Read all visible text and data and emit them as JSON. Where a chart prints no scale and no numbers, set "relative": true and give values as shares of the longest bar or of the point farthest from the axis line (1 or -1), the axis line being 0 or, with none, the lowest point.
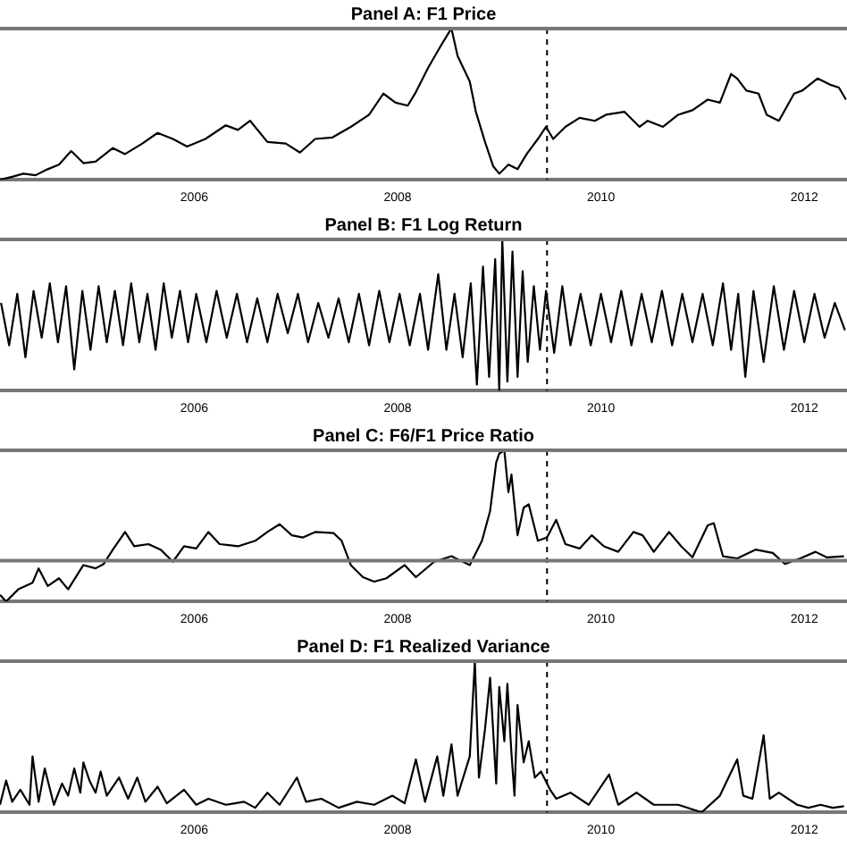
{
  "chart_data": [
    {
      "type": "line",
      "title": "Panel A: F1 Price",
      "relative": true,
      "marker": "none",
      "grid": false,
      "xlim": [
        2004.09,
        2012.42
      ],
      "xticks": [
        2006,
        2008,
        2010,
        2012
      ],
      "ref_lines": [
        {
          "axis": "x",
          "value": 2009.47,
          "line_style": "dashed"
        }
      ],
      "series": [
        {
          "color": "#000000",
          "x": [
            2004.09,
            2004.21,
            2004.32,
            2004.44,
            2004.56,
            2004.67,
            2004.79,
            2004.91,
            2005.03,
            2005.2,
            2005.32,
            2005.49,
            2005.64,
            2005.79,
            2005.93,
            2006.11,
            2006.31,
            2006.43,
            2006.55,
            2006.72,
            2006.9,
            2007.04,
            2007.19,
            2007.36,
            2007.54,
            2007.72,
            2007.86,
            2007.98,
            2008.1,
            2008.18,
            2008.3,
            2008.42,
            2008.51,
            2008.53,
            2008.59,
            2008.71,
            2008.77,
            2008.86,
            2008.94,
            2009.0,
            2009.09,
            2009.18,
            2009.27,
            2009.38,
            2009.46,
            2009.53,
            2009.65,
            2009.79,
            2009.94,
            2010.05,
            2010.23,
            2010.38,
            2010.46,
            2010.61,
            2010.76,
            2010.9,
            2011.05,
            2011.17,
            2011.28,
            2011.34,
            2011.43,
            2011.55,
            2011.63,
            2011.75,
            2011.9,
            2011.98,
            2012.13,
            2012.25,
            2012.34,
            2012.41
          ],
          "values": [
            0,
            0.02,
            0.04,
            0.03,
            0.07,
            0.1,
            0.19,
            0.11,
            0.12,
            0.21,
            0.17,
            0.24,
            0.31,
            0.27,
            0.22,
            0.27,
            0.36,
            0.33,
            0.39,
            0.25,
            0.24,
            0.18,
            0.27,
            0.28,
            0.35,
            0.43,
            0.57,
            0.51,
            0.49,
            0.58,
            0.74,
            0.88,
            0.98,
            1,
            0.82,
            0.65,
            0.45,
            0.25,
            0.09,
            0.04,
            0.1,
            0.07,
            0.17,
            0.27,
            0.35,
            0.27,
            0.35,
            0.41,
            0.39,
            0.43,
            0.45,
            0.35,
            0.39,
            0.35,
            0.43,
            0.46,
            0.53,
            0.51,
            0.7,
            0.67,
            0.59,
            0.57,
            0.43,
            0.39,
            0.57,
            0.59,
            0.67,
            0.63,
            0.61,
            0.53
          ]
        }
      ]
    },
    {
      "type": "line",
      "title": "Panel B: F1 Log Return",
      "relative": true,
      "marker": "none",
      "grid": false,
      "xlim": [
        2004.09,
        2012.42
      ],
      "xticks": [
        2006,
        2008,
        2010,
        2012
      ],
      "ref_lines": [
        {
          "axis": "x",
          "value": 2009.47,
          "line_style": "dashed"
        }
      ],
      "series": [
        {
          "color": "#000000",
          "x": [
            2004.1,
            2004.18,
            2004.26,
            2004.34,
            2004.42,
            2004.5,
            2004.58,
            2004.66,
            2004.74,
            2004.82,
            2004.9,
            2004.98,
            2005.06,
            2005.14,
            2005.22,
            2005.3,
            2005.38,
            2005.46,
            2005.54,
            2005.62,
            2005.7,
            2005.78,
            2005.86,
            2005.94,
            2006.02,
            2006.12,
            2006.22,
            2006.32,
            2006.42,
            2006.52,
            2006.62,
            2006.72,
            2006.82,
            2006.92,
            2007.02,
            2007.12,
            2007.22,
            2007.32,
            2007.42,
            2007.52,
            2007.62,
            2007.72,
            2007.82,
            2007.92,
            2008.02,
            2008.12,
            2008.22,
            2008.3,
            2008.4,
            2008.48,
            2008.56,
            2008.64,
            2008.72,
            2008.78,
            2008.84,
            2008.9,
            2008.96,
            2009.0,
            2009.03,
            2009.08,
            2009.13,
            2009.18,
            2009.23,
            2009.28,
            2009.34,
            2009.4,
            2009.46,
            2009.54,
            2009.62,
            2009.7,
            2009.8,
            2009.9,
            2010.0,
            2010.1,
            2010.2,
            2010.3,
            2010.4,
            2010.5,
            2010.6,
            2010.7,
            2010.8,
            2010.9,
            2011.0,
            2011.1,
            2011.2,
            2011.28,
            2011.35,
            2011.42,
            2011.5,
            2011.6,
            2011.7,
            2011.8,
            2011.9,
            2012.0,
            2012.1,
            2012.2,
            2012.3,
            2012.4
          ],
          "values": [
            0.58,
            0.3,
            0.64,
            0.22,
            0.66,
            0.35,
            0.71,
            0.32,
            0.69,
            0.14,
            0.66,
            0.27,
            0.69,
            0.32,
            0.66,
            0.3,
            0.71,
            0.32,
            0.64,
            0.27,
            0.71,
            0.35,
            0.66,
            0.32,
            0.64,
            0.32,
            0.66,
            0.35,
            0.64,
            0.32,
            0.61,
            0.32,
            0.64,
            0.38,
            0.64,
            0.32,
            0.58,
            0.35,
            0.61,
            0.32,
            0.64,
            0.3,
            0.66,
            0.32,
            0.64,
            0.3,
            0.64,
            0.27,
            0.77,
            0.27,
            0.64,
            0.22,
            0.71,
            0.04,
            0.82,
            0.09,
            0.87,
            0,
            1,
            0.06,
            0.92,
            0.09,
            0.79,
            0.19,
            0.69,
            0.27,
            0.66,
            0.25,
            0.69,
            0.3,
            0.64,
            0.3,
            0.64,
            0.32,
            0.66,
            0.3,
            0.64,
            0.32,
            0.66,
            0.3,
            0.64,
            0.32,
            0.64,
            0.3,
            0.71,
            0.27,
            0.64,
            0.09,
            0.66,
            0.19,
            0.69,
            0.27,
            0.66,
            0.32,
            0.64,
            0.35,
            0.58,
            0.4
          ]
        }
      ]
    },
    {
      "type": "line",
      "title": "Panel C: F6/F1 Price Ratio",
      "relative": true,
      "marker": "none",
      "grid": false,
      "xlim": [
        2004.09,
        2012.42
      ],
      "xticks": [
        2006,
        2008,
        2010,
        2012
      ],
      "ref_lines": [
        {
          "axis": "x",
          "value": 2009.47,
          "line_style": "dashed"
        },
        {
          "axis": "y",
          "value": 0,
          "line_style": "solid"
        }
      ],
      "series": [
        {
          "color": "#000000",
          "x": [
            2004.09,
            2004.15,
            2004.27,
            2004.41,
            2004.47,
            2004.56,
            2004.67,
            2004.76,
            2004.91,
            2005.03,
            2005.11,
            2005.2,
            2005.32,
            2005.41,
            2005.55,
            2005.67,
            2005.79,
            2005.9,
            2006.02,
            2006.14,
            2006.25,
            2006.43,
            2006.6,
            2006.72,
            2006.84,
            2006.96,
            2007.07,
            2007.19,
            2007.37,
            2007.45,
            2007.54,
            2007.66,
            2007.77,
            2007.89,
            2008.07,
            2008.18,
            2008.36,
            2008.53,
            2008.71,
            2008.83,
            2008.91,
            2008.97,
            2009.0,
            2009.05,
            2009.09,
            2009.12,
            2009.18,
            2009.24,
            2009.29,
            2009.38,
            2009.47,
            2009.56,
            2009.65,
            2009.79,
            2009.91,
            2010.03,
            2010.17,
            2010.32,
            2010.41,
            2010.52,
            2010.67,
            2010.79,
            2010.9,
            2011.05,
            2011.11,
            2011.2,
            2011.34,
            2011.52,
            2011.69,
            2011.81,
            2011.96,
            2012.11,
            2012.22,
            2012.39
          ],
          "values": [
            -0.31,
            -0.37,
            -0.26,
            -0.2,
            -0.07,
            -0.23,
            -0.16,
            -0.26,
            -0.04,
            -0.07,
            -0.03,
            0.1,
            0.26,
            0.13,
            0.15,
            0.1,
            -0.01,
            0.13,
            0.11,
            0.26,
            0.15,
            0.13,
            0.18,
            0.26,
            0.33,
            0.23,
            0.21,
            0.26,
            0.25,
            0.18,
            -0.04,
            -0.15,
            -0.19,
            -0.16,
            -0.04,
            -0.15,
            -0.01,
            0.04,
            -0.04,
            0.18,
            0.45,
            0.89,
            0.97,
            1,
            0.62,
            0.78,
            0.23,
            0.48,
            0.51,
            0.18,
            0.21,
            0.37,
            0.15,
            0.11,
            0.23,
            0.13,
            0.08,
            0.26,
            0.23,
            0.08,
            0.26,
            0.13,
            0.03,
            0.32,
            0.34,
            0.04,
            0.02,
            0.1,
            0.07,
            -0.03,
            0.02,
            0.08,
            0.03,
            0.04
          ]
        }
      ]
    },
    {
      "type": "line",
      "title": "Panel D: F1 Realized Variance",
      "relative": true,
      "marker": "none",
      "grid": false,
      "xlim": [
        2004.09,
        2012.42
      ],
      "xticks": [
        2006,
        2008,
        2010,
        2012
      ],
      "ref_lines": [
        {
          "axis": "x",
          "value": 2009.47,
          "line_style": "dashed"
        }
      ],
      "series": [
        {
          "color": "#000000",
          "x": [
            2004.09,
            2004.15,
            2004.21,
            2004.29,
            2004.38,
            2004.41,
            2004.47,
            2004.53,
            2004.62,
            2004.7,
            2004.76,
            2004.82,
            2004.88,
            2004.91,
            2004.97,
            2005.03,
            2005.08,
            2005.14,
            2005.26,
            2005.35,
            2005.44,
            2005.52,
            2005.64,
            2005.73,
            2005.9,
            2006.02,
            2006.14,
            2006.31,
            2006.49,
            2006.6,
            2006.72,
            2006.84,
            2007.01,
            2007.1,
            2007.25,
            2007.42,
            2007.6,
            2007.77,
            2007.95,
            2008.07,
            2008.18,
            2008.27,
            2008.39,
            2008.45,
            2008.53,
            2008.59,
            2008.71,
            2008.76,
            2008.8,
            2008.86,
            2008.91,
            2008.97,
            2009.0,
            2009.05,
            2009.08,
            2009.12,
            2009.15,
            2009.18,
            2009.24,
            2009.29,
            2009.35,
            2009.41,
            2009.5,
            2009.56,
            2009.7,
            2009.88,
            2010.08,
            2010.17,
            2010.35,
            2010.52,
            2010.76,
            2010.99,
            2011.17,
            2011.34,
            2011.4,
            2011.49,
            2011.6,
            2011.66,
            2011.75,
            2011.93,
            2012.04,
            2012.16,
            2012.28,
            2012.39
          ],
          "values": [
            0.05,
            0.21,
            0.07,
            0.15,
            0.05,
            0.37,
            0.07,
            0.29,
            0.05,
            0.19,
            0.11,
            0.29,
            0.13,
            0.33,
            0.21,
            0.13,
            0.27,
            0.11,
            0.23,
            0.09,
            0.23,
            0.07,
            0.17,
            0.06,
            0.15,
            0.05,
            0.09,
            0.05,
            0.07,
            0.03,
            0.13,
            0.05,
            0.23,
            0.07,
            0.09,
            0.03,
            0.07,
            0.05,
            0.11,
            0.06,
            0.35,
            0.07,
            0.37,
            0.11,
            0.45,
            0.11,
            0.37,
            1,
            0.23,
            0.55,
            0.89,
            0.19,
            0.83,
            0.47,
            0.85,
            0.39,
            0.11,
            0.71,
            0.33,
            0.47,
            0.23,
            0.27,
            0.15,
            0.09,
            0.13,
            0.05,
            0.25,
            0.05,
            0.13,
            0.05,
            0.05,
            0,
            0.11,
            0.35,
            0.11,
            0.09,
            0.51,
            0.09,
            0.13,
            0.05,
            0.03,
            0.05,
            0.03,
            0.04
          ]
        }
      ]
    }
  ]
}
